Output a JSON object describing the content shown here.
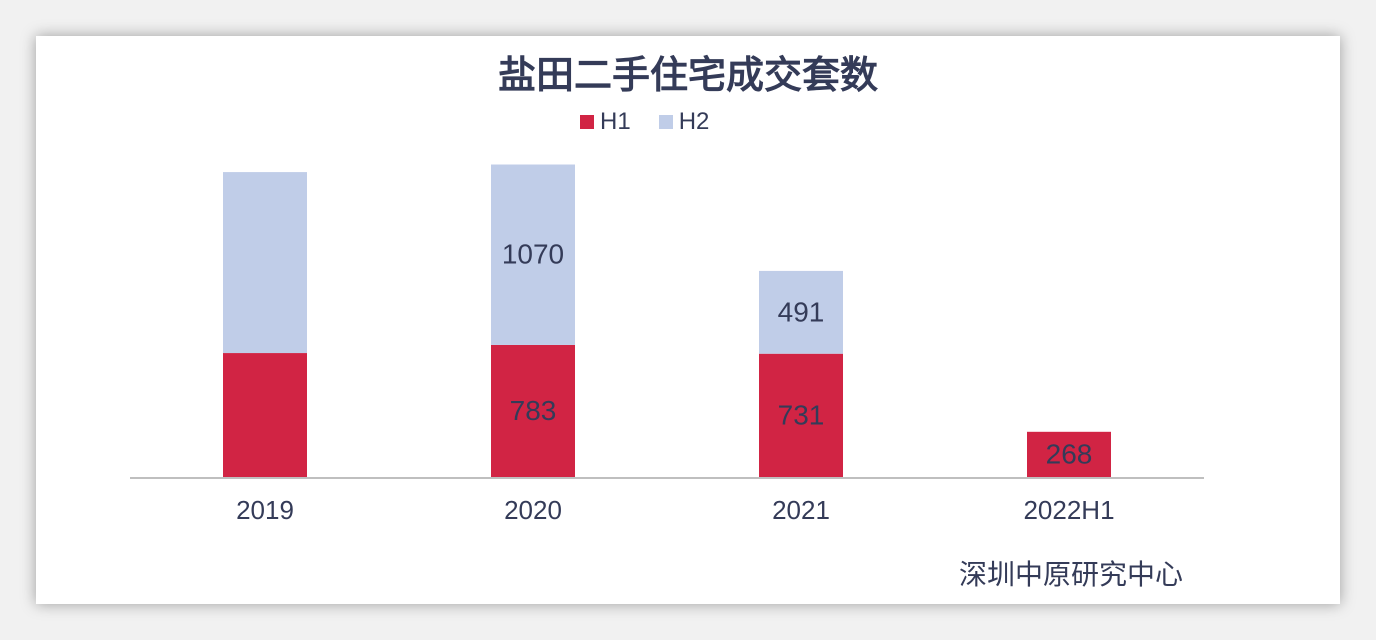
{
  "chart_data": {
    "type": "bar",
    "stacked": true,
    "title": "盐田二手住宅成交套数",
    "xlabel": "",
    "ylabel": "",
    "categories": [
      "2019",
      "2020",
      "2021",
      "2022H1"
    ],
    "series": [
      {
        "name": "H1",
        "color": "#d12444",
        "values": [
          735,
          783,
          731,
          268
        ],
        "labels": [
          "",
          "783",
          "731",
          "268"
        ]
      },
      {
        "name": "H2",
        "color": "#c0cde8",
        "values": [
          1073,
          1070,
          491,
          0
        ],
        "labels": [
          "",
          "1070",
          "491",
          ""
        ]
      }
    ],
    "ylim": [
      0,
      1850
    ],
    "legend_position": "top",
    "grid": false
  },
  "source": "深圳中原研究中心",
  "colors": {
    "text": "#343b58",
    "axis": "#bfbfbf"
  }
}
